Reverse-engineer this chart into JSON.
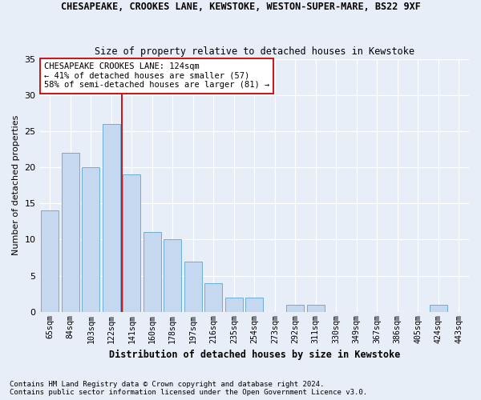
{
  "title1": "CHESAPEAKE, CROOKES LANE, KEWSTOKE, WESTON-SUPER-MARE, BS22 9XF",
  "title2": "Size of property relative to detached houses in Kewstoke",
  "xlabel": "Distribution of detached houses by size in Kewstoke",
  "ylabel": "Number of detached properties",
  "categories": [
    "65sqm",
    "84sqm",
    "103sqm",
    "122sqm",
    "141sqm",
    "160sqm",
    "178sqm",
    "197sqm",
    "216sqm",
    "235sqm",
    "254sqm",
    "273sqm",
    "292sqm",
    "311sqm",
    "330sqm",
    "349sqm",
    "367sqm",
    "386sqm",
    "405sqm",
    "424sqm",
    "443sqm"
  ],
  "values": [
    14,
    22,
    20,
    26,
    19,
    11,
    10,
    7,
    4,
    2,
    2,
    0,
    1,
    1,
    0,
    0,
    0,
    0,
    0,
    1,
    0
  ],
  "bar_color": "#c5d8f0",
  "bar_edge_color": "#6baed6",
  "vline_index": 3,
  "vline_color": "#cc0000",
  "annotation_text": "CHESAPEAKE CROOKES LANE: 124sqm\n← 41% of detached houses are smaller (57)\n58% of semi-detached houses are larger (81) →",
  "annotation_box_color": "#ffffff",
  "annotation_box_edge": "#cc0000",
  "ylim": [
    0,
    35
  ],
  "yticks": [
    0,
    5,
    10,
    15,
    20,
    25,
    30,
    35
  ],
  "footer1": "Contains HM Land Registry data © Crown copyright and database right 2024.",
  "footer2": "Contains public sector information licensed under the Open Government Licence v3.0.",
  "bg_color": "#e8eef7",
  "plot_bg_color": "#e8eef7"
}
